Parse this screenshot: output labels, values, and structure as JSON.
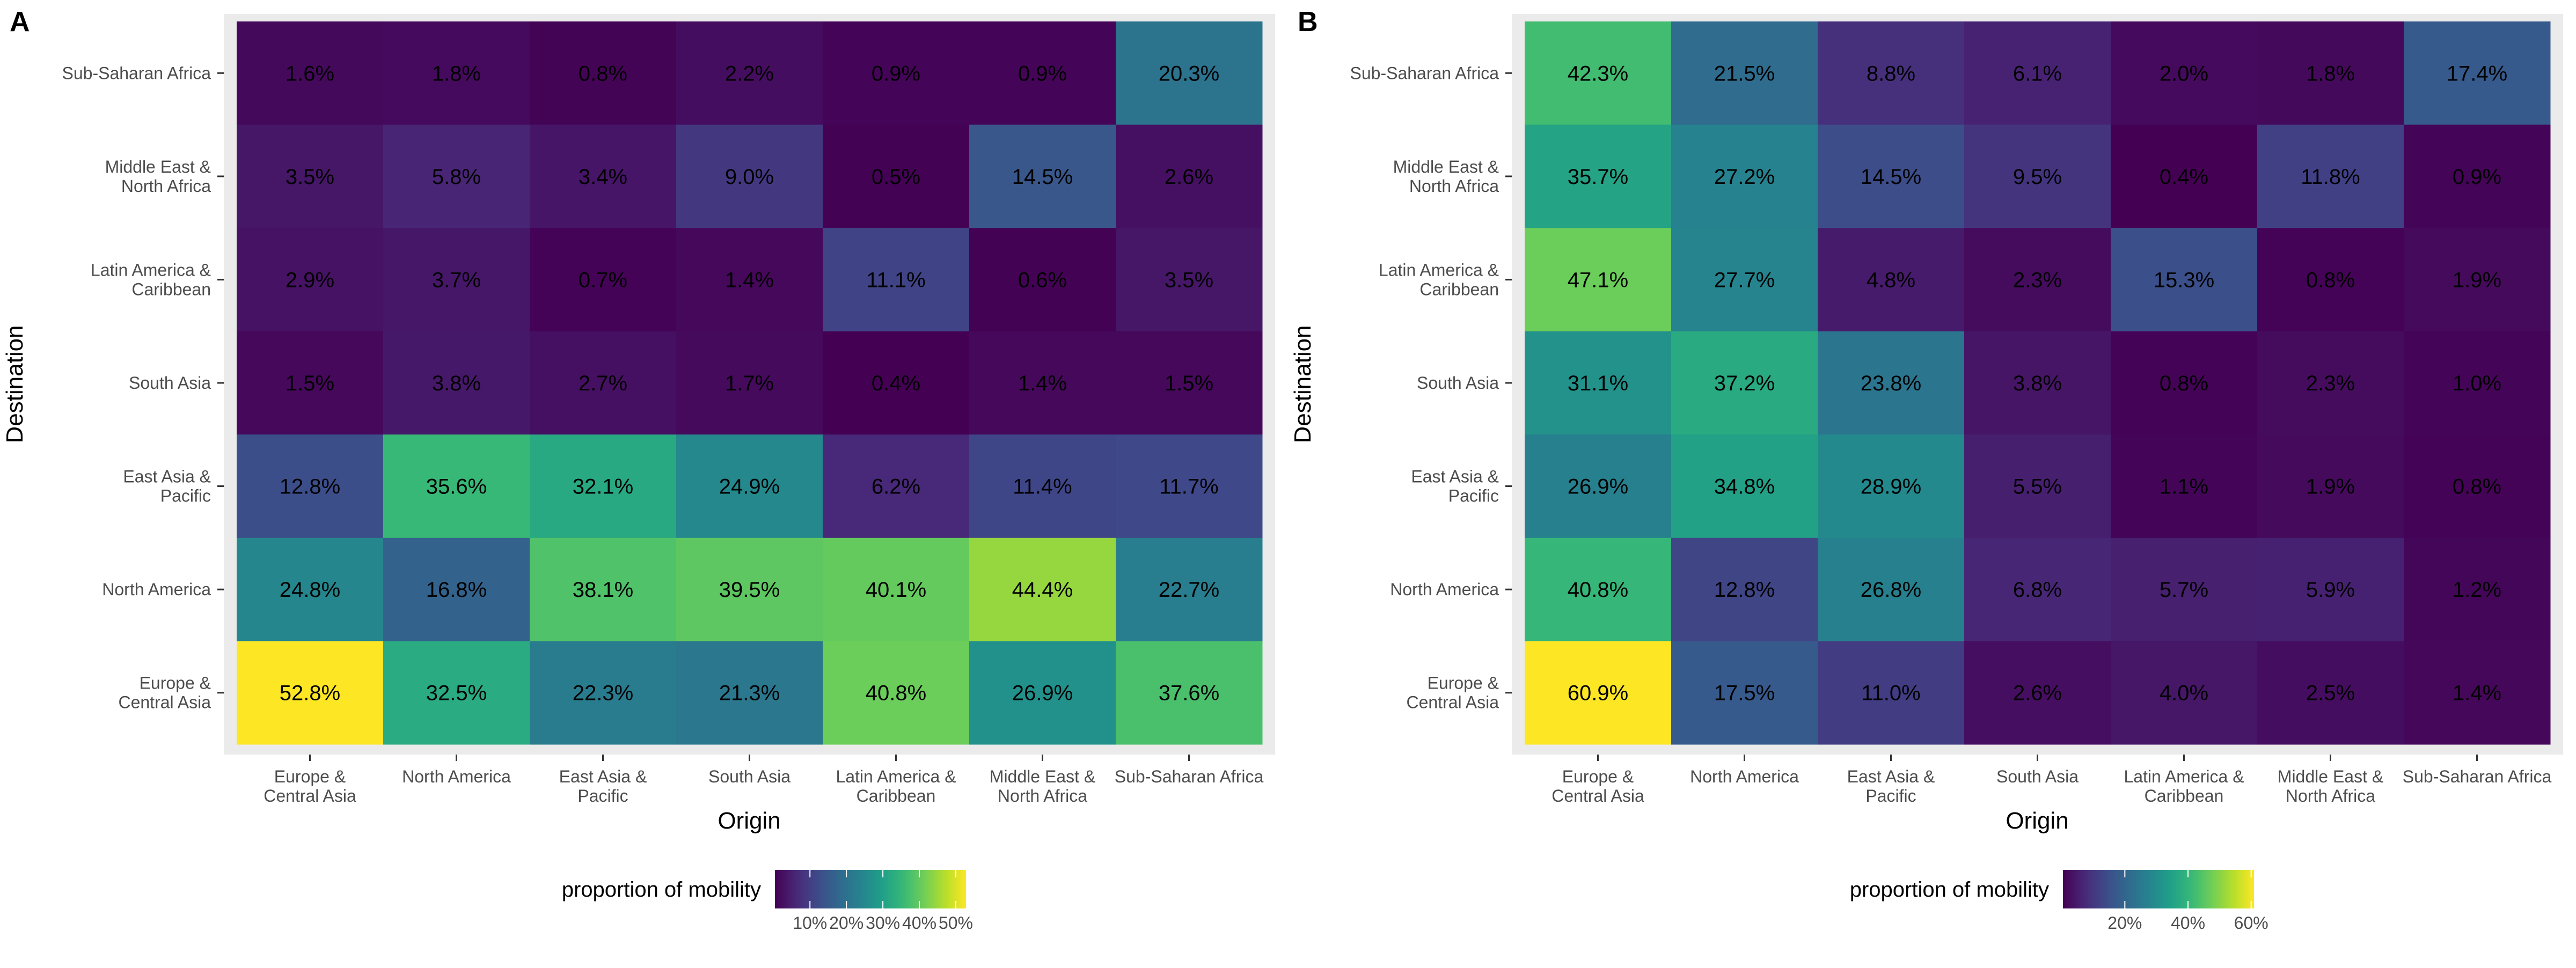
{
  "panels": [
    {
      "label": "A",
      "xlabel": "Origin",
      "ylabel": "Destination",
      "legend": {
        "title": "proportion of mobility",
        "ticks": [
          "10%",
          "20%",
          "30%",
          "40%",
          "50%"
        ],
        "tick_values": [
          10,
          20,
          30,
          40,
          50
        ]
      }
    },
    {
      "label": "B",
      "xlabel": "Origin",
      "ylabel": "Destination",
      "legend": {
        "title": "proportion of mobility",
        "ticks": [
          "20%",
          "40%",
          "60%"
        ],
        "tick_values": [
          20,
          40,
          60
        ]
      }
    }
  ],
  "chart_data": [
    {
      "type": "heatmap",
      "panel": "A",
      "xlabel": "Origin",
      "ylabel": "Destination",
      "x_categories": [
        [
          "Europe &",
          "Central Asia"
        ],
        [
          "North America"
        ],
        [
          "East Asia &",
          "Pacific"
        ],
        [
          "South Asia"
        ],
        [
          "Latin America &",
          "Caribbean"
        ],
        [
          "Middle East &",
          "North Africa"
        ],
        [
          "Sub-Saharan Africa"
        ]
      ],
      "y_categories": [
        [
          "Sub-Saharan Africa"
        ],
        [
          "Middle East &",
          "North Africa"
        ],
        [
          "Latin America &",
          "Caribbean"
        ],
        [
          "South Asia"
        ],
        [
          "East Asia &",
          "Pacific"
        ],
        [
          "North America"
        ],
        [
          "Europe &",
          "Central Asia"
        ]
      ],
      "values": [
        [
          1.6,
          1.8,
          0.8,
          2.2,
          0.9,
          0.9,
          20.3
        ],
        [
          3.5,
          5.8,
          3.4,
          9.0,
          0.5,
          14.5,
          2.6
        ],
        [
          2.9,
          3.7,
          0.7,
          1.4,
          11.1,
          0.6,
          3.5
        ],
        [
          1.5,
          3.8,
          2.7,
          1.7,
          0.4,
          1.4,
          1.5
        ],
        [
          12.8,
          35.6,
          32.1,
          24.9,
          6.2,
          11.4,
          11.7
        ],
        [
          24.8,
          16.8,
          38.1,
          39.5,
          40.1,
          44.4,
          22.7
        ],
        [
          52.8,
          32.5,
          22.3,
          21.3,
          40.8,
          26.9,
          37.6
        ]
      ],
      "labels": [
        [
          "1.6%",
          "1.8%",
          "0.8%",
          "2.2%",
          "0.9%",
          "0.9%",
          "20.3%"
        ],
        [
          "3.5%",
          "5.8%",
          "3.4%",
          "9.0%",
          "0.5%",
          "14.5%",
          "2.6%"
        ],
        [
          "2.9%",
          "3.7%",
          "0.7%",
          "1.4%",
          "11.1%",
          "0.6%",
          "3.5%"
        ],
        [
          "1.5%",
          "3.8%",
          "2.7%",
          "1.7%",
          "0.4%",
          "1.4%",
          "1.5%"
        ],
        [
          "12.8%",
          "35.6%",
          "32.1%",
          "24.9%",
          "6.2%",
          "11.4%",
          "11.7%"
        ],
        [
          "24.8%",
          "16.8%",
          "38.1%",
          "39.5%",
          "40.1%",
          "44.4%",
          "22.7%"
        ],
        [
          "52.8%",
          "32.5%",
          "22.3%",
          "21.3%",
          "40.8%",
          "26.9%",
          "37.6%"
        ]
      ],
      "color_scale": "viridis",
      "color_range": [
        0.4,
        52.8
      ]
    },
    {
      "type": "heatmap",
      "panel": "B",
      "xlabel": "Origin",
      "ylabel": "Destination",
      "x_categories": [
        [
          "Europe &",
          "Central Asia"
        ],
        [
          "North America"
        ],
        [
          "East Asia &",
          "Pacific"
        ],
        [
          "South Asia"
        ],
        [
          "Latin America &",
          "Caribbean"
        ],
        [
          "Middle East &",
          "North Africa"
        ],
        [
          "Sub-Saharan Africa"
        ]
      ],
      "y_categories": [
        [
          "Sub-Saharan Africa"
        ],
        [
          "Middle East &",
          "North Africa"
        ],
        [
          "Latin America &",
          "Caribbean"
        ],
        [
          "South Asia"
        ],
        [
          "East Asia &",
          "Pacific"
        ],
        [
          "North America"
        ],
        [
          "Europe &",
          "Central Asia"
        ]
      ],
      "values": [
        [
          42.3,
          21.5,
          8.8,
          6.1,
          2.0,
          1.8,
          17.4
        ],
        [
          35.7,
          27.2,
          14.5,
          9.5,
          0.4,
          11.8,
          0.9
        ],
        [
          47.1,
          27.7,
          4.8,
          2.3,
          15.3,
          0.8,
          1.9
        ],
        [
          31.1,
          37.2,
          23.8,
          3.8,
          0.8,
          2.3,
          1.0
        ],
        [
          26.9,
          34.8,
          28.9,
          5.5,
          1.1,
          1.9,
          0.8
        ],
        [
          40.8,
          12.8,
          26.8,
          6.8,
          5.7,
          5.9,
          1.2
        ],
        [
          60.9,
          17.5,
          11.0,
          2.6,
          4.0,
          2.5,
          1.4
        ]
      ],
      "labels": [
        [
          "42.3%",
          "21.5%",
          "8.8%",
          "6.1%",
          "2.0%",
          "1.8%",
          "17.4%"
        ],
        [
          "35.7%",
          "27.2%",
          "14.5%",
          "9.5%",
          "0.4%",
          "11.8%",
          "0.9%"
        ],
        [
          "47.1%",
          "27.7%",
          "4.8%",
          "2.3%",
          "15.3%",
          "0.8%",
          "1.9%"
        ],
        [
          "31.1%",
          "37.2%",
          "23.8%",
          "3.8%",
          "0.8%",
          "2.3%",
          "1.0%"
        ],
        [
          "26.9%",
          "34.8%",
          "28.9%",
          "5.5%",
          "1.1%",
          "1.9%",
          "0.8%"
        ],
        [
          "40.8%",
          "12.8%",
          "26.8%",
          "6.8%",
          "5.7%",
          "5.9%",
          "1.2%"
        ],
        [
          "60.9%",
          "17.5%",
          "11.0%",
          "2.6%",
          "4.0%",
          "2.5%",
          "1.4%"
        ]
      ],
      "color_scale": "viridis",
      "color_range": [
        0.4,
        60.9
      ]
    }
  ]
}
